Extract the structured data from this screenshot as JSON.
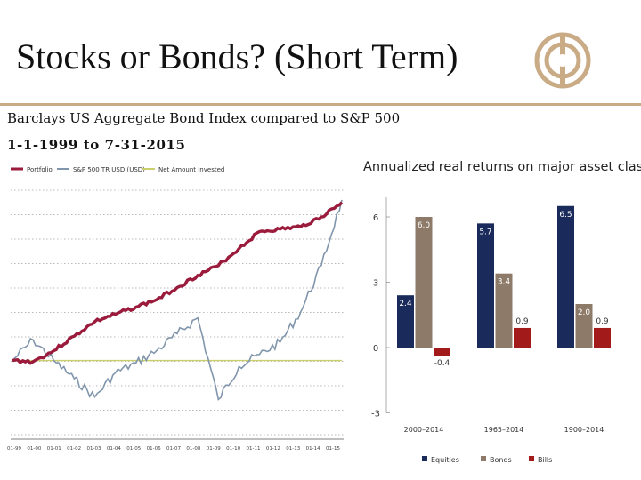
{
  "slide": {
    "title": "Stocks or Bonds? (Short Term)",
    "subtitle_line1": "Barclays US Aggregate Bond Index compared to S&P 500",
    "subtitle_line2": "1-1-1999 to 7-31-2015"
  },
  "colors": {
    "rule": "#c9ab86",
    "logo": "#c9ab86",
    "portfolio": "#9b1b3c",
    "sp500": "#8196ac",
    "net_invested": "#c9cf6b",
    "equities": "#1a2a5a",
    "bonds": "#8e7a68",
    "bills": "#a31a1a"
  },
  "chart_data": [
    {
      "type": "line",
      "legend_position": "top-left",
      "grid": true,
      "x_tick_labels": [
        "01-99",
        "01-00",
        "01-01",
        "01-02",
        "01-03",
        "01-04",
        "01-05",
        "01-06",
        "01-07",
        "01-08",
        "01-09",
        "01-10",
        "01-11",
        "01-12",
        "01-13",
        "01-14",
        "01-15"
      ],
      "series": [
        {
          "name": "Portfolio",
          "values": [
            1.0,
            0.99,
            1.08,
            1.2,
            1.32,
            1.38,
            1.44,
            1.5,
            1.6,
            1.7,
            1.78,
            1.92,
            2.06,
            2.08,
            2.1,
            2.18,
            2.3
          ]
        },
        {
          "name": "S&P 500 TR USD (USD)",
          "values": [
            1.0,
            1.17,
            1.0,
            0.85,
            0.7,
            0.9,
            0.98,
            1.08,
            1.22,
            1.35,
            0.68,
            0.95,
            1.05,
            1.15,
            1.4,
            1.78,
            2.32
          ]
        },
        {
          "name": "Net Amount Invested",
          "values": [
            1.0,
            1.0,
            1.0,
            1.0,
            1.0,
            1.0,
            1.0,
            1.0,
            1.0,
            1.0,
            1.0,
            1.0,
            1.0,
            1.0,
            1.0,
            1.0,
            1.0
          ]
        }
      ]
    },
    {
      "type": "bar",
      "title": "Annualized real returns on major asset classes (%)",
      "ylim": [
        -3,
        7
      ],
      "y_ticks": [
        "6",
        "3",
        "0",
        "-3"
      ],
      "grid": false,
      "legend_position": "bottom",
      "categories": [
        "2000–2014",
        "1965–2014",
        "1900–2014"
      ],
      "series": [
        {
          "name": "Equities",
          "values": [
            2.4,
            5.7,
            6.5
          ],
          "labels": [
            "2.4",
            "5.7",
            "6.5"
          ]
        },
        {
          "name": "Bonds",
          "values": [
            6.0,
            3.4,
            2.0
          ],
          "labels": [
            "6.0",
            "3.4",
            "2.0"
          ]
        },
        {
          "name": "Bills",
          "values": [
            -0.4,
            0.9,
            0.9
          ],
          "labels": [
            "-0.4",
            "0.9",
            "0.9"
          ]
        }
      ]
    }
  ]
}
